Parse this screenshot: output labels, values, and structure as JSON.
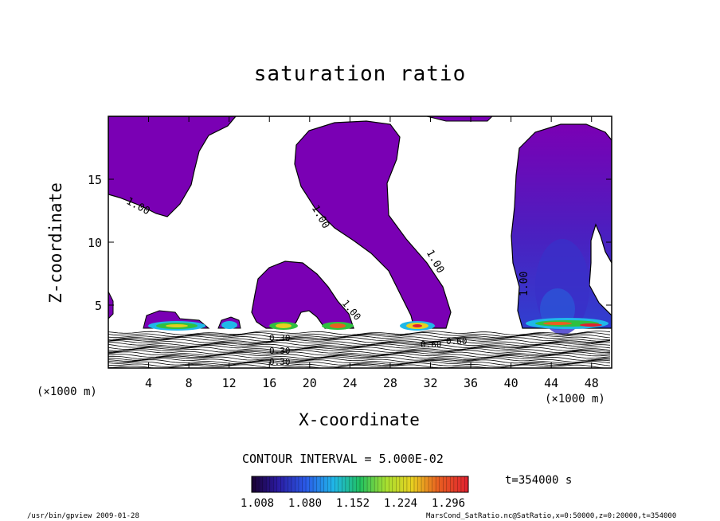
{
  "chart_data": {
    "type": "contour",
    "title": "saturation ratio",
    "xlabel": "X-coordinate",
    "ylabel": "Z-coordinate",
    "x_unit": "(×1000 m)",
    "x_ticks": [
      4,
      8,
      12,
      16,
      20,
      24,
      28,
      32,
      36,
      40,
      44,
      48
    ],
    "y_ticks": [
      5,
      10,
      15
    ],
    "xlim": [
      0,
      50
    ],
    "ylim": [
      0,
      20
    ],
    "contour_labels": [
      "1.00",
      "1.00",
      "1.00",
      "1.00",
      "1.00",
      "0.30",
      "0.30",
      "0.60",
      "0.30",
      "0.60"
    ],
    "contour_interval": "CONTOUR INTERVAL = 5.000E-02",
    "colorbar_ticks": [
      "1.008",
      "1.080",
      "1.152",
      "1.224",
      "1.296"
    ],
    "time_label": "t=354000 s",
    "colors": {
      "saturated_fill": "#7a00b4",
      "deep_fill": "#3b1fb8",
      "frame": "#000000"
    }
  },
  "footer": {
    "left": "/usr/bin/gpview  2009-01-28",
    "right": "MarsCond_SatRatio.nc@SatRatio,x=0:50000,z=0:20000,t=354000"
  }
}
